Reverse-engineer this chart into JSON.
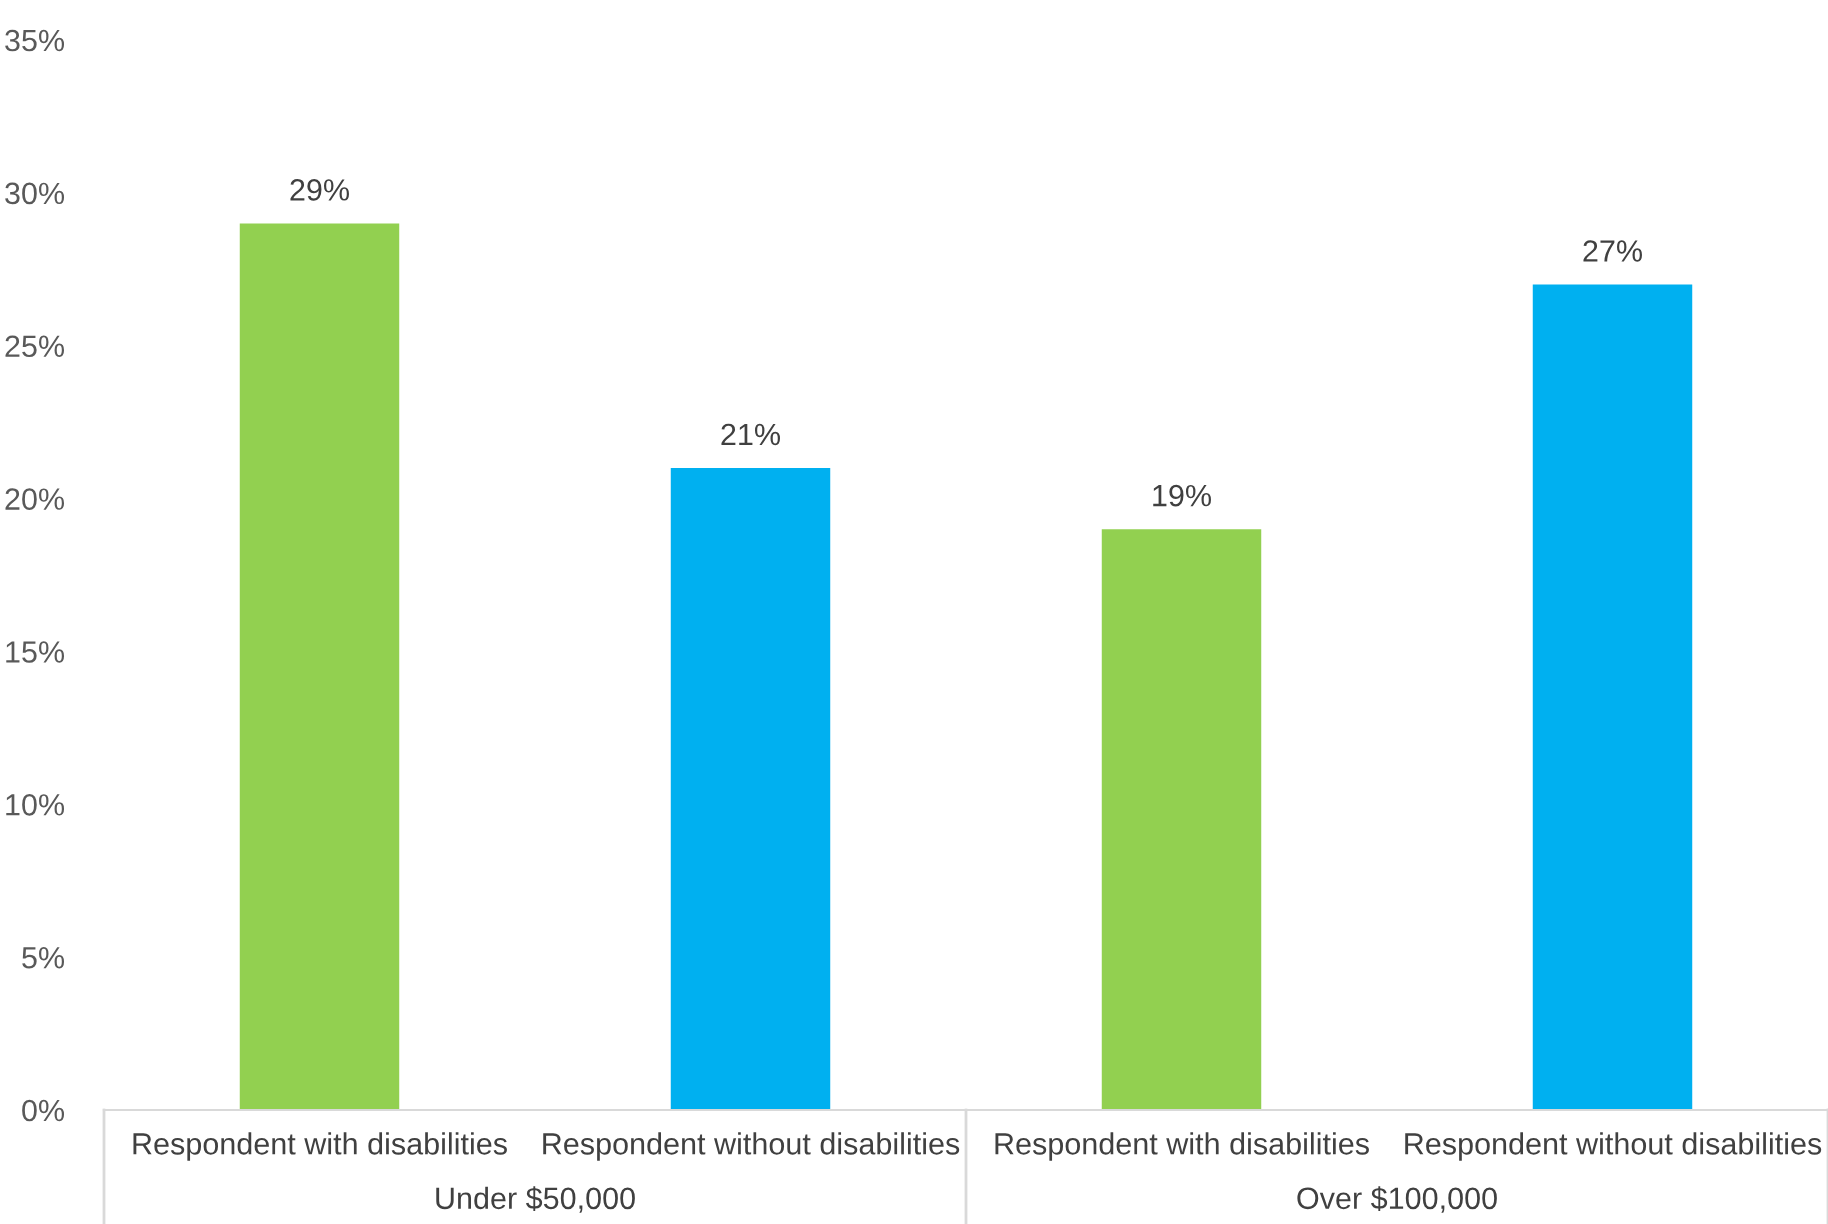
{
  "chart_data": {
    "type": "bar",
    "categories": [
      "Respondent with disabilities",
      "Respondent without disabilities",
      "Respondent with disabilities",
      "Respondent without disabilities"
    ],
    "values": [
      29,
      21,
      19,
      27
    ],
    "colors": [
      "#92d050",
      "#00b0f0",
      "#92d050",
      "#00b0f0"
    ],
    "value_labels": [
      "29%",
      "21%",
      "19%",
      "27%"
    ],
    "ylim": [
      0,
      35
    ],
    "yticks": [
      {
        "value": 0,
        "label": "0%"
      },
      {
        "value": 5,
        "label": "5%"
      },
      {
        "value": 10,
        "label": "10%"
      },
      {
        "value": 15,
        "label": "15%"
      },
      {
        "value": 20,
        "label": "20%"
      },
      {
        "value": 25,
        "label": "25%"
      },
      {
        "value": 30,
        "label": "30%"
      },
      {
        "value": 35,
        "label": "35%"
      }
    ],
    "annotations": [
      "Under $50,000",
      "Over $100,000"
    ],
    "grid": false
  }
}
